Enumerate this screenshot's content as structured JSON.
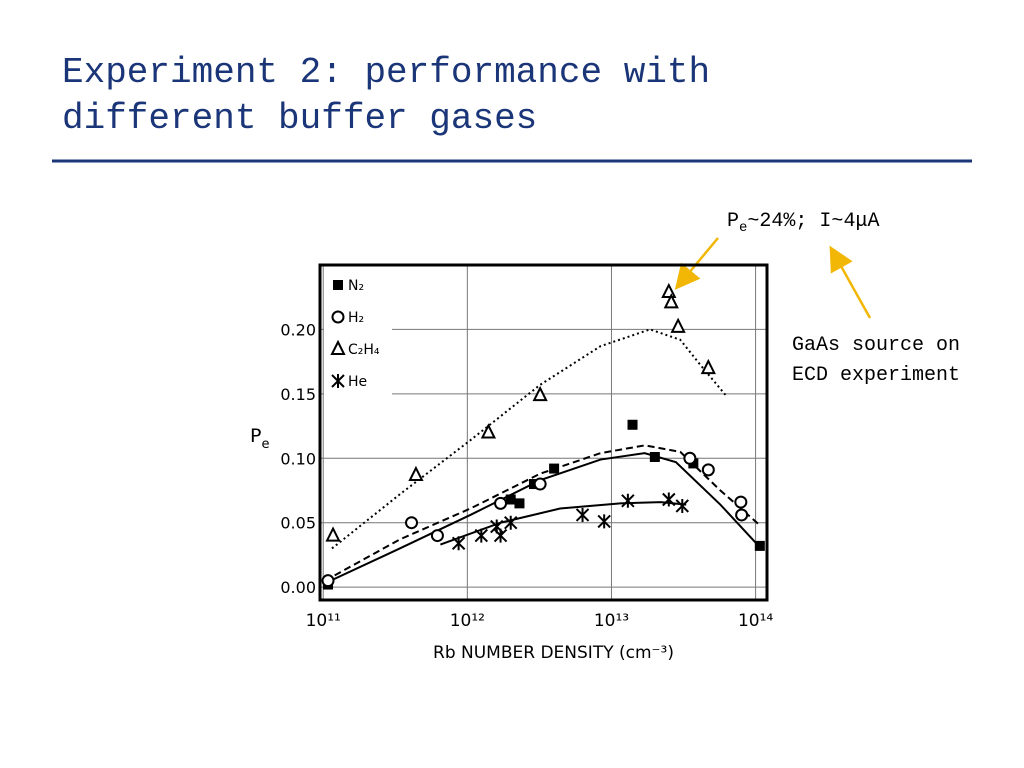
{
  "slide": {
    "title_lines": [
      "Experiment 2: performance with",
      "different buffer gases"
    ],
    "annotation_main": "P",
    "annotation_sub": "e",
    "annotation_rest": "~24%; I~4μA",
    "note_lines": [
      "GaAs source on",
      "ECD experiment"
    ]
  },
  "chart_data": {
    "type": "scatter",
    "xlabel": "Rb NUMBER DENSITY (cm⁻³)",
    "ylabel": "P",
    "ylabel_sub": "e",
    "xscale": "log",
    "grid": true,
    "legend": "upper left",
    "xlim": [
      95000000000,
      120000000000000
    ],
    "ylim": [
      -0.01,
      0.25
    ],
    "xticks": [
      {
        "value": 100000000000,
        "label": "10¹¹"
      },
      {
        "value": 1000000000000,
        "label": "10¹²"
      },
      {
        "value": 10000000000000,
        "label": "10¹³"
      },
      {
        "value": 100000000000000,
        "label": "10¹⁴"
      }
    ],
    "yticks": [
      {
        "value": 0,
        "label": "0.00"
      },
      {
        "value": 0.05,
        "label": "0.05"
      },
      {
        "value": 0.1,
        "label": "0.10"
      },
      {
        "value": 0.15,
        "label": "0.15"
      },
      {
        "value": 0.2,
        "label": "0.20"
      }
    ],
    "series": [
      {
        "name": "N₂",
        "marker": "square",
        "color": "#000000",
        "x": [
          108000000000,
          2000000000000,
          2300000000000,
          2900000000000,
          4000000000000,
          14000000000000,
          20000000000000,
          37000000000000,
          107000000000000
        ],
        "values": [
          0.002,
          0.068,
          0.065,
          0.08,
          0.092,
          0.126,
          0.101,
          0.096,
          0.032
        ]
      },
      {
        "name": "H₂",
        "marker": "circle",
        "color": "#000000",
        "x": [
          108000000000,
          410000000000,
          620000000000,
          1700000000000,
          3200000000000,
          35000000000000,
          47000000000000,
          79000000000000,
          80000000000000
        ],
        "values": [
          0.005,
          0.05,
          0.04,
          0.065,
          0.08,
          0.1,
          0.091,
          0.066,
          0.056
        ]
      },
      {
        "name": "C₂H₄",
        "marker": "triangle",
        "color": "#000000",
        "x": [
          117000000000,
          440000000000,
          1400000000000,
          3200000000000,
          25000000000000,
          26000000000000,
          29000000000000,
          47000000000000
        ],
        "values": [
          0.04,
          0.087,
          0.12,
          0.149,
          0.229,
          0.221,
          0.202,
          0.17
        ]
      },
      {
        "name": "He",
        "marker": "asterisk",
        "color": "#000000",
        "x": [
          870000000000,
          1250000000000,
          1600000000000,
          1700000000000,
          2000000000000,
          6300000000000,
          8900000000000,
          13000000000000,
          25000000000000,
          31000000000000
        ],
        "values": [
          0.034,
          0.04,
          0.047,
          0.04,
          0.05,
          0.056,
          0.051,
          0.067,
          0.068,
          0.063
        ]
      }
    ],
    "curves": [
      {
        "style": "dotted",
        "x": [
          115000000000,
          340000000000,
          1050000000000,
          3200000000000,
          8400000000000,
          18500000000000,
          30000000000000,
          41000000000000,
          62000000000000
        ],
        "y": [
          0.03,
          0.072,
          0.114,
          0.157,
          0.187,
          0.2,
          0.192,
          0.173,
          0.149
        ]
      },
      {
        "style": "dashed",
        "x": [
          103000000000,
          340000000000,
          1050000000000,
          3200000000000,
          8400000000000,
          17000000000000,
          30000000000000,
          57000000000000,
          107000000000000
        ],
        "y": [
          0.005,
          0.037,
          0.061,
          0.088,
          0.104,
          0.11,
          0.105,
          0.075,
          0.048
        ]
      },
      {
        "style": "solid",
        "x": [
          103000000000,
          340000000000,
          1050000000000,
          3200000000000,
          8400000000000,
          17000000000000,
          28000000000000,
          57000000000000,
          107000000000000
        ],
        "y": [
          0.003,
          0.03,
          0.056,
          0.083,
          0.099,
          0.104,
          0.097,
          0.064,
          0.031
        ]
      },
      {
        "style": "solid",
        "x": [
          650000000000,
          1700000000000,
          4400000000000,
          11500000000000,
          22000000000000,
          33000000000000
        ],
        "y": [
          0.033,
          0.05,
          0.061,
          0.065,
          0.066,
          0.064
        ]
      }
    ]
  }
}
